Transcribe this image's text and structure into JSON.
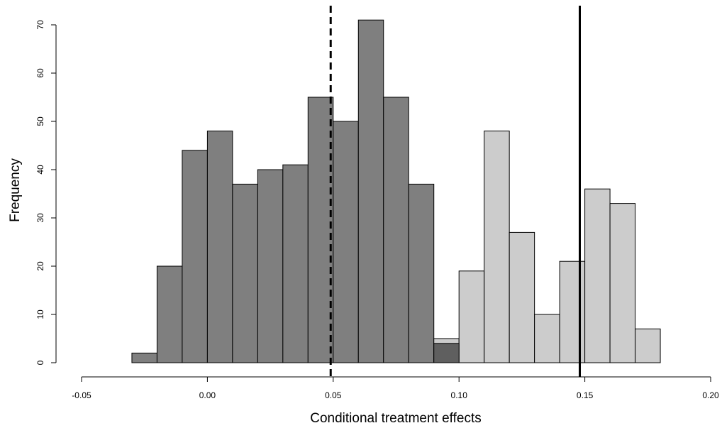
{
  "chart_data": {
    "type": "bar",
    "subtype": "histogram",
    "xlabel": "Conditional treatment effects",
    "ylabel": "Frequency",
    "xlim": [
      -0.05,
      0.2
    ],
    "ylim": [
      0,
      70
    ],
    "xticks": [
      "-0.05",
      "0.00",
      "0.05",
      "0.10",
      "0.15",
      "0.20"
    ],
    "yticks": [
      "0",
      "10",
      "20",
      "30",
      "40",
      "50",
      "60",
      "70"
    ],
    "grid": false,
    "legend": "none",
    "series": [
      {
        "color": "#7f7f7f",
        "bins": [
          {
            "x0": -0.03,
            "x1": -0.02,
            "count": 2
          },
          {
            "x0": -0.02,
            "x1": -0.01,
            "count": 20
          },
          {
            "x0": -0.01,
            "x1": 0.0,
            "count": 44
          },
          {
            "x0": 0.0,
            "x1": 0.01,
            "count": 48
          },
          {
            "x0": 0.01,
            "x1": 0.02,
            "count": 37
          },
          {
            "x0": 0.02,
            "x1": 0.03,
            "count": 40
          },
          {
            "x0": 0.03,
            "x1": 0.04,
            "count": 41
          },
          {
            "x0": 0.04,
            "x1": 0.05,
            "count": 55
          },
          {
            "x0": 0.05,
            "x1": 0.06,
            "count": 50
          },
          {
            "x0": 0.06,
            "x1": 0.07,
            "count": 71
          },
          {
            "x0": 0.07,
            "x1": 0.08,
            "count": 55
          },
          {
            "x0": 0.08,
            "x1": 0.09,
            "count": 37
          },
          {
            "x0": 0.09,
            "x1": 0.1,
            "count": 4
          }
        ]
      },
      {
        "color": "#cccccc",
        "bins": [
          {
            "x0": 0.09,
            "x1": 0.1,
            "count": 5
          },
          {
            "x0": 0.1,
            "x1": 0.11,
            "count": 19
          },
          {
            "x0": 0.11,
            "x1": 0.12,
            "count": 48
          },
          {
            "x0": 0.12,
            "x1": 0.13,
            "count": 27
          },
          {
            "x0": 0.13,
            "x1": 0.14,
            "count": 10
          },
          {
            "x0": 0.14,
            "x1": 0.15,
            "count": 21
          },
          {
            "x0": 0.15,
            "x1": 0.16,
            "count": 36
          },
          {
            "x0": 0.16,
            "x1": 0.17,
            "count": 33
          },
          {
            "x0": 0.17,
            "x1": 0.18,
            "count": 7
          }
        ]
      }
    ],
    "overlap_color": "#5f5f5f",
    "vlines": [
      {
        "x": 0.049,
        "style": "dashed",
        "color": "#000000"
      },
      {
        "x": 0.148,
        "style": "solid",
        "color": "#000000"
      }
    ]
  }
}
